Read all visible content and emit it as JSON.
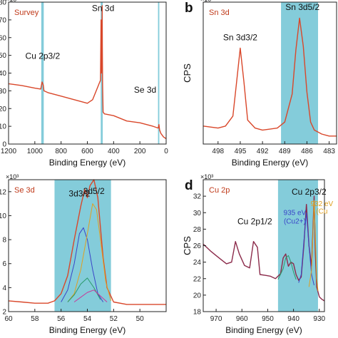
{
  "chart_data": [
    {
      "panel_letter": "a",
      "type": "line",
      "inset_label": "Survey",
      "ylabel": "CPS",
      "xlabel": "Binding Energy (eV)",
      "exponent": "×10⁴",
      "xlim": [
        1200,
        0
      ],
      "ylim": [
        0,
        80
      ],
      "xticks": [
        1200,
        1000,
        800,
        600,
        400,
        200,
        0
      ],
      "yticks": [
        0,
        10,
        20,
        30,
        40,
        50,
        60,
        70,
        80
      ],
      "highlight_bands": [
        [
          951,
          932
        ],
        [
          498,
          483
        ],
        [
          62,
          52
        ]
      ],
      "annotations": [
        {
          "text": "Sn 3d",
          "x": 480,
          "y": 75
        },
        {
          "text": "Cu 2p3/2",
          "x": 940,
          "y": 48
        },
        {
          "text": "Se 3d",
          "x": 160,
          "y": 29
        }
      ],
      "series": [
        {
          "color": "#d9472a",
          "x": [
            1200,
            1100,
            1000,
            955,
            945,
            935,
            930,
            900,
            800,
            700,
            600,
            560,
            500,
            496,
            495,
            493,
            490,
            487,
            486,
            485,
            484,
            480,
            470,
            400,
            300,
            200,
            100,
            60,
            55,
            50,
            40,
            20,
            0
          ],
          "y": [
            34,
            33,
            31.5,
            31,
            35,
            33,
            30,
            29,
            27,
            25,
            23,
            25,
            36,
            70,
            48,
            40,
            46,
            78,
            55,
            44,
            33,
            18,
            17,
            16,
            13,
            12,
            10,
            9,
            11,
            8,
            6,
            4,
            3
          ]
        }
      ]
    },
    {
      "panel_letter": "b",
      "type": "line",
      "inset_label": "Sn 3d",
      "ylabel": "CPS",
      "xlabel": "Binding Energy (eV)",
      "exponent": "×10⁴",
      "xlim": [
        500,
        482
      ],
      "xticks": [
        498,
        495,
        492,
        489,
        486,
        483
      ],
      "highlight_bands": [
        [
          489.5,
          484.5
        ]
      ],
      "annotations": [
        {
          "text": "Sn 3d3/2",
          "x": 495,
          "y": 5.7
        },
        {
          "text": "Sn 3d5/2",
          "x": 486.6,
          "y": 7.2
        }
      ],
      "series": [
        {
          "color": "#d9472a",
          "x": [
            500,
            498,
            497,
            496,
            495.5,
            495,
            494.5,
            494,
            493,
            492,
            490,
            489,
            488,
            487.5,
            487,
            486.5,
            486,
            485.5,
            485,
            484,
            483,
            482
          ],
          "y": [
            1.4,
            1.3,
            1.4,
            1.9,
            3.6,
            5.3,
            3.6,
            1.7,
            1.3,
            1.2,
            1.3,
            1.6,
            3.0,
            5.2,
            6.8,
            5.4,
            3.1,
            1.6,
            1.2,
            1.0,
            0.9,
            0.9
          ]
        }
      ]
    },
    {
      "panel_letter": "c",
      "type": "line",
      "inset_label": "Se 3d",
      "ylabel": "CPS",
      "xlabel": "Binding Energy (eV)",
      "exponent": "×10³",
      "xlim": [
        60,
        48
      ],
      "ylim": [
        2,
        13
      ],
      "xticks": [
        60,
        58,
        56,
        54,
        52,
        50
      ],
      "yticks": [
        2,
        4,
        6,
        8,
        10,
        12
      ],
      "highlight_bands": [
        [
          56.5,
          52.2
        ]
      ],
      "annotations": [
        {
          "text": "3d3/2",
          "x": 54.6,
          "y": 11.6
        },
        {
          "text": "3d5/2",
          "x": 53.5,
          "y": 11.8
        }
      ],
      "series": [
        {
          "name": "raw",
          "color": "#d9472a",
          "x": [
            60,
            59,
            58,
            57,
            56.5,
            56,
            55.5,
            55,
            54.5,
            54.2,
            54,
            53.8,
            53.5,
            53.2,
            53,
            52.8,
            52.5,
            52,
            51,
            50,
            49,
            48
          ],
          "y": [
            2.9,
            2.8,
            2.7,
            2.7,
            2.9,
            3.5,
            5.0,
            8.0,
            10.8,
            12.2,
            11.5,
            12.5,
            13.0,
            11.5,
            9.0,
            6.5,
            4.0,
            2.8,
            2.6,
            2.6,
            2.6,
            2.6
          ]
        },
        {
          "name": "fit1",
          "color": "#3a45c8",
          "x": [
            56,
            55.5,
            55,
            54.6,
            54.3,
            54,
            53.6,
            53.2,
            52.8
          ],
          "y": [
            2.8,
            3.8,
            6.0,
            8.5,
            9.0,
            8.0,
            5.5,
            3.5,
            2.8
          ]
        },
        {
          "name": "fit2",
          "color": "#e0a020",
          "x": [
            55.5,
            55,
            54.5,
            54,
            53.6,
            53.3,
            53,
            52.6,
            52.2
          ],
          "y": [
            2.8,
            3.5,
            5.5,
            8.5,
            11.0,
            10.5,
            8.0,
            4.5,
            2.9
          ]
        },
        {
          "name": "fit3",
          "color": "#2a9a6a",
          "x": [
            55.5,
            55,
            54.5,
            54,
            53.5,
            53
          ],
          "y": [
            2.8,
            3.4,
            4.3,
            4.8,
            4.0,
            3.0
          ]
        },
        {
          "name": "fit4",
          "color": "#c83a9a",
          "x": [
            55,
            54.5,
            54,
            53.5,
            53,
            52.5
          ],
          "y": [
            2.8,
            3.2,
            3.6,
            3.8,
            3.3,
            2.8
          ]
        }
      ]
    },
    {
      "panel_letter": "d",
      "type": "line",
      "inset_label": "Cu 2p",
      "ylabel": "CPS",
      "xlabel": "Binding Energy (eV)",
      "exponent": "×10³",
      "xlim": [
        975,
        928
      ],
      "ylim": [
        18,
        34
      ],
      "xticks": [
        970,
        960,
        950,
        940,
        930
      ],
      "yticks": [
        18,
        20,
        22,
        24,
        26,
        28,
        30,
        32
      ],
      "highlight_bands": [
        [
          946,
          930.5
        ]
      ],
      "annotations": [
        {
          "text": "Cu 2p1/2",
          "x": 955,
          "y": 28.6
        },
        {
          "text": "Cu 2p3/2",
          "x": 934,
          "y": 32.2
        },
        {
          "text": "935 eV",
          "x": 939.5,
          "y": 29.7
        },
        {
          "text": "(Cu2+)",
          "x": 939.5,
          "y": 28.7
        },
        {
          "text": "932 eV",
          "x": 929,
          "y": 30.8
        },
        {
          "text": "(Cu",
          "x": 929,
          "y": 29.9
        }
      ],
      "series": [
        {
          "name": "raw",
          "color": "#8b2a4a",
          "x": [
            975,
            972,
            970,
            968,
            966,
            964,
            962.5,
            961,
            959,
            957,
            955.5,
            954,
            953,
            951,
            949,
            947,
            945,
            944,
            943,
            942,
            941,
            940,
            939,
            938,
            937,
            936,
            935,
            934,
            933,
            932.5,
            932,
            931.5,
            931,
            930,
            929,
            928
          ],
          "y": [
            26.2,
            25.3,
            24.8,
            24.3,
            23.8,
            24.0,
            26.5,
            25.0,
            23.6,
            23.3,
            26.5,
            25.8,
            22.5,
            22.4,
            22.3,
            22.0,
            22.6,
            24.5,
            25.0,
            23.5,
            24.0,
            23.8,
            22.5,
            21.8,
            22.2,
            26.0,
            31.0,
            26.0,
            23.5,
            27.5,
            32.0,
            25.0,
            21.0,
            19.8,
            19.5,
            19.3
          ]
        },
        {
          "name": "fit-green",
          "color": "#2a9a6a",
          "x": [
            946,
            944,
            943,
            942,
            941,
            940,
            939
          ],
          "y": [
            21.9,
            23.2,
            24.5,
            24.8,
            24.0,
            22.8,
            21.9
          ]
        },
        {
          "name": "fit-blue",
          "color": "#3a45c8",
          "x": [
            938,
            937,
            936,
            935,
            934,
            933,
            932
          ],
          "y": [
            21.5,
            22.5,
            26.5,
            30.0,
            26.0,
            22.5,
            21.2
          ]
        },
        {
          "name": "fit-orange",
          "color": "#e0a020",
          "x": [
            934,
            933,
            932.5,
            932,
            931.5,
            931,
            930.5
          ],
          "y": [
            21.0,
            23.0,
            27.0,
            31.5,
            27.0,
            22.0,
            20.5
          ]
        }
      ]
    }
  ]
}
